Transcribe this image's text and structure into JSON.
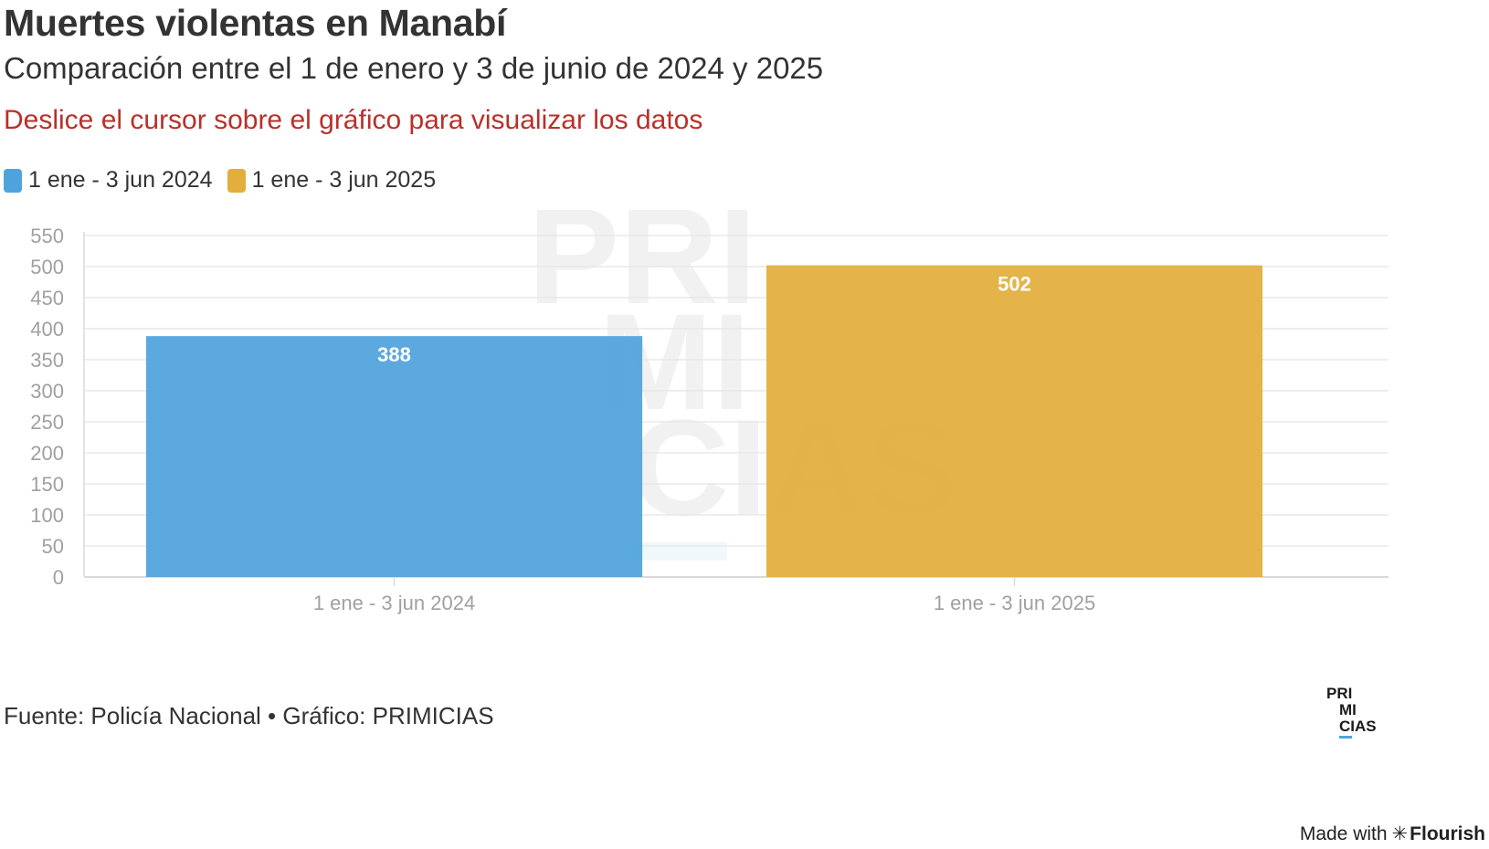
{
  "header": {
    "title": "Muertes violentas en Manabí",
    "subtitle": "Comparación entre el 1 de enero y 3 de junio de 2024 y 2025",
    "note": "Deslice el cursor sobre el gráfico para visualizar los datos"
  },
  "legend": [
    {
      "label": "1 ene - 3 jun 2024",
      "color": "#4fa3dc"
    },
    {
      "label": "1 ene - 3 jun 2025",
      "color": "#e2ae3c"
    }
  ],
  "chart_data": {
    "type": "bar",
    "categories": [
      "1 ene - 3 jun 2024",
      "1 ene - 3 jun 2025"
    ],
    "values": [
      388,
      502
    ],
    "data_labels": [
      "388",
      "502"
    ],
    "colors": [
      "#4fa3dc",
      "#e2ae3c"
    ],
    "ylim": [
      0,
      550
    ],
    "yticks": [
      0,
      50,
      100,
      150,
      200,
      250,
      300,
      350,
      400,
      450,
      500,
      550
    ],
    "xlabel": "",
    "ylabel": "",
    "grid": true,
    "legend_position": "top-left"
  },
  "watermark": {
    "lines": [
      "PRI",
      "MI",
      "CIAS"
    ],
    "accent_color": "#4fa3dc"
  },
  "footer": {
    "source": "Fuente: Policía Nacional • Gráfico: PRIMICIAS",
    "made_with": "Made with",
    "flourish_star": "✳",
    "flourish": "Flourish"
  },
  "brand_logo": {
    "lines": [
      "PRI",
      "MI",
      "CIAS"
    ],
    "accent_color": "#4fa3dc"
  }
}
